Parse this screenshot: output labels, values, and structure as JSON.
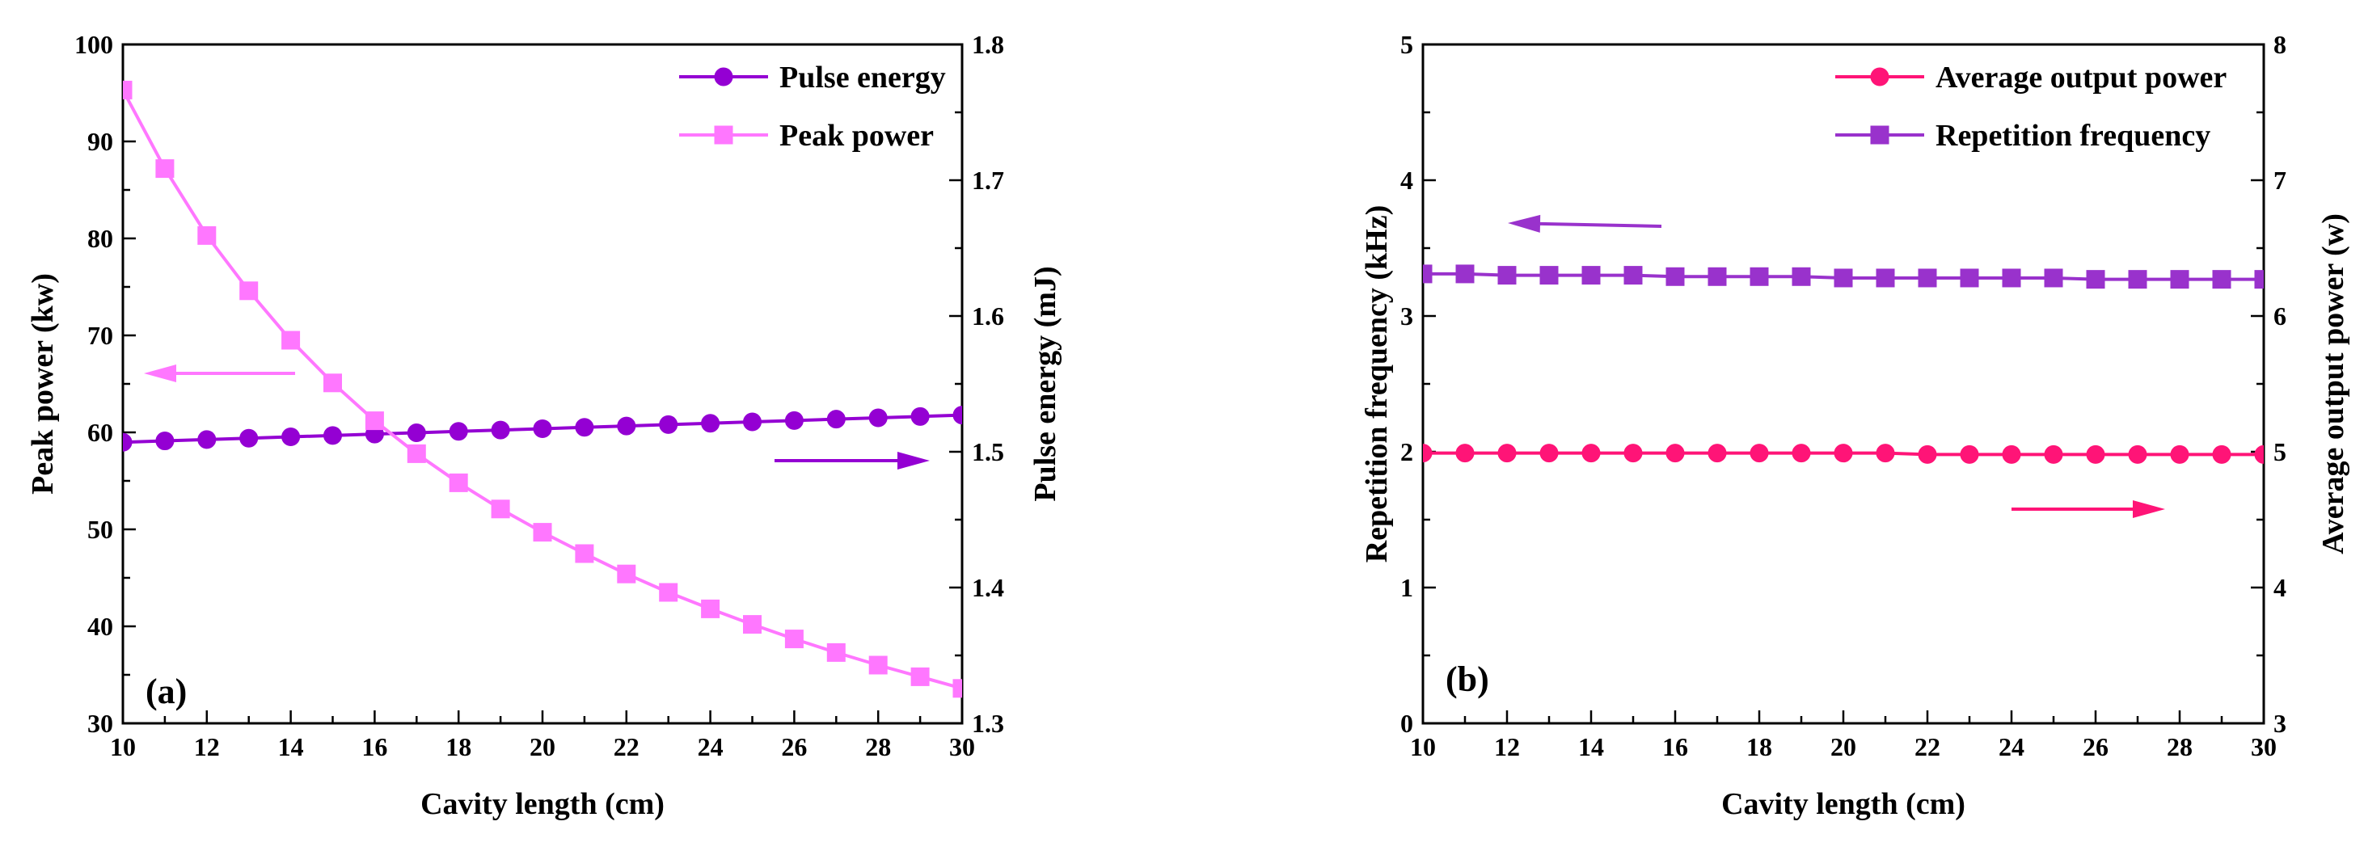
{
  "colors": {
    "purple": "#9400D3",
    "pink": "#FF77FF",
    "magenta": "#FF1477",
    "violet": "#9932CC"
  },
  "chart_data": [
    {
      "type": "line",
      "panel_label": "(a)",
      "xlabel": "Cavity length (cm)",
      "xlim": [
        10,
        30
      ],
      "xticks": [
        "10",
        "12",
        "14",
        "16",
        "18",
        "20",
        "22",
        "24",
        "26",
        "28",
        "30"
      ],
      "ylabel_left": "Peak power (kw)",
      "ylim_left": [
        30,
        100
      ],
      "yticks_left": [
        "30",
        "40",
        "50",
        "60",
        "70",
        "80",
        "90",
        "100"
      ],
      "ylabel_right": "Pulse energy (mJ)",
      "ylim_right": [
        1.3,
        1.8
      ],
      "yticks_right": [
        "1.3",
        "1.4",
        "1.5",
        "1.6",
        "1.7",
        "1.8"
      ],
      "x": [
        10,
        11,
        12,
        13,
        14,
        15,
        16,
        17,
        18,
        19,
        20,
        21,
        22,
        23,
        24,
        25,
        26,
        27,
        28,
        29,
        30
      ],
      "series": [
        {
          "name": "Pulse energy",
          "axis": "right",
          "marker": "circle",
          "color": "#9400D3",
          "values": [
            1.507,
            1.508,
            1.509,
            1.51,
            1.511,
            1.512,
            1.513,
            1.514,
            1.515,
            1.516,
            1.517,
            1.518,
            1.519,
            1.52,
            1.521,
            1.522,
            1.523,
            1.524,
            1.525,
            1.526,
            1.527
          ]
        },
        {
          "name": "Peak power",
          "axis": "left",
          "marker": "square",
          "color": "#FF77FF",
          "values": [
            95.3,
            87.2,
            80.3,
            74.6,
            69.5,
            65.1,
            61.2,
            57.8,
            54.8,
            52.1,
            49.7,
            47.5,
            45.4,
            43.5,
            41.8,
            40.2,
            38.7,
            37.3,
            36.0,
            34.8,
            33.6
          ]
        }
      ],
      "legend": [
        {
          "label": "Pulse energy",
          "series": 0
        },
        {
          "label": "Peak power",
          "series": 1
        }
      ]
    },
    {
      "type": "line",
      "panel_label": "(b)",
      "xlabel": "Cavity length (cm)",
      "xlim": [
        10,
        30
      ],
      "xticks": [
        "10",
        "12",
        "14",
        "16",
        "18",
        "20",
        "22",
        "24",
        "26",
        "28",
        "30"
      ],
      "ylabel_left": "Repetition frequency (kHz)",
      "ylim_left": [
        0,
        5
      ],
      "yticks_left": [
        "0",
        "1",
        "2",
        "3",
        "4",
        "5"
      ],
      "ylabel_right": "Average output power (w)",
      "ylim_right": [
        3,
        8
      ],
      "yticks_right": [
        "3",
        "4",
        "5",
        "6",
        "7",
        "8"
      ],
      "x": [
        10,
        11,
        12,
        13,
        14,
        15,
        16,
        17,
        18,
        19,
        20,
        21,
        22,
        23,
        24,
        25,
        26,
        27,
        28,
        29,
        30
      ],
      "series": [
        {
          "name": "Average output power",
          "axis": "right",
          "marker": "circle",
          "color": "#FF1477",
          "values": [
            4.99,
            4.99,
            4.99,
            4.99,
            4.99,
            4.99,
            4.99,
            4.99,
            4.99,
            4.99,
            4.99,
            4.99,
            4.98,
            4.98,
            4.98,
            4.98,
            4.98,
            4.98,
            4.98,
            4.98,
            4.98
          ]
        },
        {
          "name": "Repetition frequency",
          "axis": "left",
          "marker": "square",
          "color": "#9932CC",
          "values": [
            3.31,
            3.31,
            3.3,
            3.3,
            3.3,
            3.3,
            3.29,
            3.29,
            3.29,
            3.29,
            3.28,
            3.28,
            3.28,
            3.28,
            3.28,
            3.28,
            3.27,
            3.27,
            3.27,
            3.27,
            3.27
          ]
        }
      ],
      "legend": [
        {
          "label": "Average output power",
          "series": 0
        },
        {
          "label": "Repetition frequency",
          "series": 1
        }
      ]
    }
  ]
}
